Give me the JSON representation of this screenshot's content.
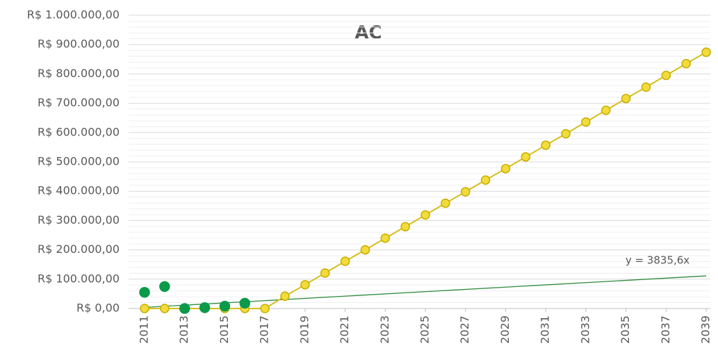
{
  "chart_data": {
    "type": "line",
    "title": "AC",
    "x": [
      2011,
      2012,
      2013,
      2014,
      2015,
      2016,
      2017,
      2018,
      2019,
      2020,
      2021,
      2022,
      2023,
      2024,
      2025,
      2026,
      2027,
      2028,
      2029,
      2030,
      2031,
      2032,
      2033,
      2034,
      2035,
      2036,
      2037,
      2038,
      2039
    ],
    "series": [
      {
        "color": "#f2dc3c",
        "values": [
          0,
          0,
          0,
          0,
          0,
          0,
          0,
          42000,
          81000,
          121000,
          161000,
          200000,
          240000,
          279000,
          319000,
          359000,
          398000,
          438000,
          477000,
          517000,
          557000,
          596000,
          636000,
          676000,
          716000,
          755000,
          795000,
          835000,
          874000
        ],
        "line": true
      },
      {
        "color": "#0a9a4a",
        "values": [
          55000,
          75000,
          0,
          3000,
          8000,
          18000,
          null,
          null,
          null,
          null,
          null,
          null,
          null,
          null,
          null,
          null,
          null,
          null,
          null,
          null,
          null,
          null,
          null,
          null,
          null,
          null,
          null,
          null,
          null
        ],
        "line": false
      }
    ],
    "trendline": {
      "slope": 3835.6,
      "label": "y = 3835,6x",
      "color": "#2e8b3e"
    },
    "xlim": [
      2011,
      2039
    ],
    "xticks": [
      2011,
      2013,
      2015,
      2017,
      2019,
      2021,
      2023,
      2025,
      2027,
      2029,
      2031,
      2033,
      2035,
      2037,
      2039
    ],
    "ylim": [
      0,
      1000000
    ],
    "yticks": [
      {
        "value": 0,
        "label": "R$ 0,00"
      },
      {
        "value": 100000,
        "label": "R$ 100.000,00"
      },
      {
        "value": 200000,
        "label": "R$ 200.000,00"
      },
      {
        "value": 300000,
        "label": "R$ 300.000,00"
      },
      {
        "value": 400000,
        "label": "R$ 400.000,00"
      },
      {
        "value": 500000,
        "label": "R$ 500.000,00"
      },
      {
        "value": 600000,
        "label": "R$ 600.000,00"
      },
      {
        "value": 700000,
        "label": "R$ 700.000,00"
      },
      {
        "value": 800000,
        "label": "R$ 800.000,00"
      },
      {
        "value": 900000,
        "label": "R$ 900.000,00"
      },
      {
        "value": 1000000,
        "label": "R$ 1.000.000,00"
      }
    ],
    "grid": true,
    "minor_grid": true
  }
}
